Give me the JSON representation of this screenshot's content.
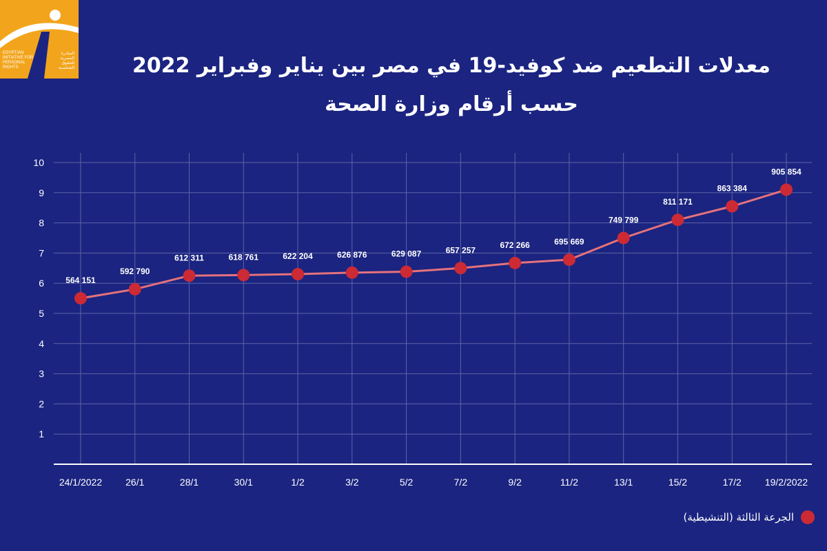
{
  "logo": {
    "icon": "road-person-logo-icon",
    "text_en": "EGYPTIAN INITIATIVE FOR PERSONAL RIGHTS",
    "text_ar": "المبادرة المصرية للحقوق الشخصية",
    "color": "#f2a51c"
  },
  "header": {
    "title": "معدلات التطعيم ضد كوفيد-19 في مصر بين يناير وفبراير 2022",
    "subtitle": "حسب أرقام وزارة الصحة"
  },
  "colors": {
    "background": "#1b2480",
    "line": "#e5727c",
    "marker": "#cc2a35",
    "grid": "#5c64a8"
  },
  "chart_data": {
    "type": "line",
    "title": "معدلات التطعيم ضد كوفيد-19 في مصر بين يناير وفبراير 2022",
    "subtitle": "حسب أرقام وزارة الصحة",
    "categories": [
      "24/1/2022",
      "26/1",
      "28/1",
      "30/1",
      "1/2",
      "3/2",
      "5/2",
      "7/2",
      "9/2",
      "11/2",
      "13/1",
      "15/2",
      "17/2",
      "19/2/2022"
    ],
    "yticks": [
      "1",
      "2",
      "3",
      "4",
      "5",
      "6",
      "7",
      "8",
      "9",
      "10"
    ],
    "ylim": [
      0,
      10
    ],
    "grid": true,
    "legend_position": "bottom-right",
    "series": [
      {
        "name": "الجرعة الثالثة (التنشيطية)",
        "values": [
          5.5,
          5.8,
          6.25,
          6.27,
          6.3,
          6.35,
          6.38,
          6.5,
          6.67,
          6.78,
          7.5,
          8.1,
          8.55,
          9.1
        ],
        "labels": [
          "564 151",
          "592 790",
          "612 311",
          "618 761",
          "622 204",
          "626 876",
          "629 087",
          "657 257",
          "672 266",
          "695 669",
          "749 799",
          "811 171",
          "863 384",
          "905 854"
        ]
      }
    ]
  }
}
